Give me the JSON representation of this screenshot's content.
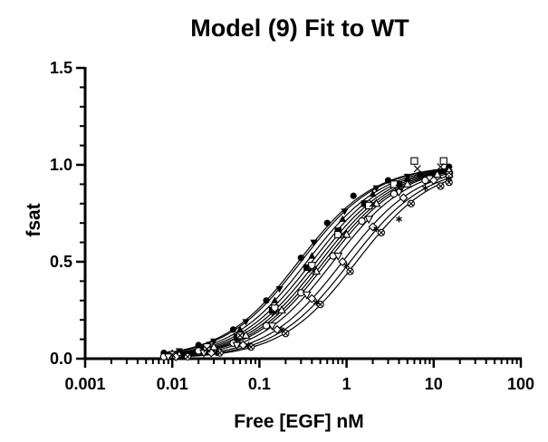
{
  "chart_data": {
    "type": "scatter",
    "title": "Model (9) Fit to WT",
    "xlabel": "Free [EGF] nM",
    "ylabel": "fsat",
    "xscale": "log",
    "xlim": [
      0.001,
      100
    ],
    "ylim": [
      0,
      1.5
    ],
    "x_ticks": [
      0.001,
      0.01,
      0.1,
      1,
      10,
      100
    ],
    "x_tick_labels": [
      "0.001",
      "0.01",
      "0.1",
      "1",
      "10",
      "100"
    ],
    "y_ticks": [
      0,
      0.5,
      1,
      1.5
    ],
    "y_tick_labels": [
      "0.0",
      "0.5",
      "1.0",
      "1.5"
    ],
    "grid": false,
    "legend": "none",
    "colors": {
      "ink": "#000000",
      "background": "#ffffff"
    },
    "series": [
      {
        "marker": "filled-circle",
        "kd": 0.28,
        "hill": 1.0,
        "x": [
          0.008,
          0.02,
          0.05,
          0.12,
          0.3,
          0.6,
          1.2,
          3,
          7,
          15
        ],
        "y": [
          0.03,
          0.07,
          0.15,
          0.3,
          0.52,
          0.7,
          0.84,
          0.92,
          0.95,
          0.99
        ]
      },
      {
        "marker": "filled-square",
        "kd": 0.4,
        "hill": 1.0,
        "x": [
          0.009,
          0.022,
          0.055,
          0.14,
          0.35,
          0.8,
          1.6,
          4,
          9,
          15
        ],
        "y": [
          0.02,
          0.05,
          0.11,
          0.25,
          0.47,
          0.66,
          0.8,
          0.9,
          0.94,
          0.96
        ]
      },
      {
        "marker": "filled-triangle-up",
        "kd": 0.35,
        "hill": 1.0,
        "x": [
          0.01,
          0.025,
          0.06,
          0.15,
          0.4,
          0.9,
          2,
          5,
          10,
          15
        ],
        "y": [
          0.03,
          0.07,
          0.15,
          0.3,
          0.53,
          0.72,
          0.85,
          0.93,
          0.96,
          0.97
        ]
      },
      {
        "marker": "filled-triangle-down",
        "kd": 0.3,
        "hill": 1.0,
        "x": [
          0.012,
          0.03,
          0.07,
          0.17,
          0.42,
          0.95,
          2.2,
          5,
          11,
          15
        ],
        "y": [
          0.04,
          0.09,
          0.19,
          0.36,
          0.6,
          0.76,
          0.88,
          0.94,
          0.95,
          0.96
        ]
      },
      {
        "marker": "open-circle",
        "kd": 0.6,
        "hill": 1.0,
        "x": [
          0.008,
          0.02,
          0.05,
          0.12,
          0.3,
          0.7,
          1.5,
          3.5,
          8,
          15
        ],
        "y": [
          0.01,
          0.04,
          0.08,
          0.17,
          0.34,
          0.53,
          0.71,
          0.85,
          0.92,
          0.95
        ]
      },
      {
        "marker": "open-square",
        "kd": 0.45,
        "hill": 1.0,
        "x": [
          0.01,
          0.025,
          0.06,
          0.15,
          0.4,
          0.8,
          1.8,
          3.5,
          6,
          13
        ],
        "y": [
          0.02,
          0.06,
          0.12,
          0.26,
          0.48,
          0.64,
          0.79,
          0.9,
          1.02,
          1.02
        ]
      },
      {
        "marker": "open-triangle-up",
        "kd": 0.55,
        "hill": 1.0,
        "x": [
          0.012,
          0.03,
          0.07,
          0.18,
          0.45,
          1,
          2.2,
          5,
          11,
          15
        ],
        "y": [
          0.02,
          0.06,
          0.12,
          0.25,
          0.45,
          0.64,
          0.8,
          0.9,
          0.95,
          0.97
        ]
      },
      {
        "marker": "open-triangle-down",
        "kd": 0.7,
        "hill": 1.0,
        "x": [
          0.009,
          0.023,
          0.055,
          0.14,
          0.35,
          0.8,
          1.8,
          4,
          9,
          15
        ],
        "y": [
          0.01,
          0.03,
          0.07,
          0.17,
          0.33,
          0.53,
          0.72,
          0.86,
          0.93,
          0.95
        ]
      },
      {
        "marker": "diamond",
        "kd": 0.9,
        "hill": 1.0,
        "x": [
          0.011,
          0.028,
          0.065,
          0.16,
          0.4,
          0.9,
          2,
          4.5,
          10,
          15
        ],
        "y": [
          0.01,
          0.03,
          0.07,
          0.15,
          0.31,
          0.5,
          0.68,
          0.83,
          0.92,
          0.94
        ]
      },
      {
        "marker": "circled-x",
        "kd": 1.3,
        "hill": 1.0,
        "x": [
          0.015,
          0.035,
          0.08,
          0.2,
          0.5,
          1.1,
          2.5,
          5.5,
          12,
          15
        ],
        "y": [
          0.01,
          0.03,
          0.06,
          0.13,
          0.28,
          0.45,
          0.65,
          0.8,
          0.89,
          0.91
        ]
      },
      {
        "marker": "asterisk",
        "kd": 1.1,
        "hill": 1.0,
        "x": [
          0.013,
          0.032,
          0.075,
          0.18,
          0.45,
          1,
          2.2,
          4,
          8,
          15
        ],
        "y": [
          0.01,
          0.03,
          0.07,
          0.15,
          0.29,
          0.48,
          0.67,
          0.72,
          0.88,
          0.93
        ]
      },
      {
        "marker": "cross",
        "kd": 0.5,
        "hill": 1.0,
        "x": [
          0.01,
          0.025,
          0.06,
          0.15,
          0.4,
          0.9,
          2,
          4,
          6.5,
          12
        ],
        "y": [
          0.02,
          0.05,
          0.12,
          0.24,
          0.46,
          0.64,
          0.8,
          0.88,
          0.98,
          0.99
        ]
      }
    ]
  }
}
